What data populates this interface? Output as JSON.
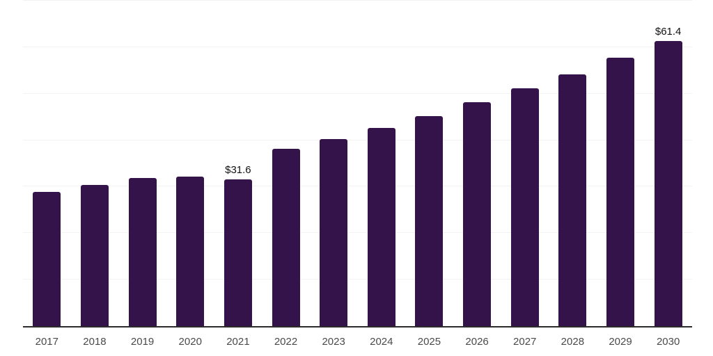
{
  "chart_data": {
    "type": "bar",
    "title": "",
    "xlabel": "",
    "ylabel": "",
    "categories": [
      "2017",
      "2018",
      "2019",
      "2020",
      "2021",
      "2022",
      "2023",
      "2024",
      "2025",
      "2026",
      "2027",
      "2028",
      "2029",
      "2030"
    ],
    "values": [
      28.9,
      30.4,
      31.9,
      32.2,
      31.6,
      38.1,
      40.2,
      42.7,
      45.2,
      48.1,
      51.1,
      54.1,
      57.7,
      61.4
    ],
    "data_labels": [
      "",
      "",
      "",
      "",
      "$31.6",
      "",
      "",
      "",
      "",
      "",
      "",
      "",
      "",
      "$61.4"
    ],
    "currency_prefix": "$",
    "ylim": [
      0,
      70
    ],
    "grid_interval": 10,
    "grid_visible": true,
    "legend_position": "none",
    "bar_color": "#331349",
    "grid_color": "#f2f2f2",
    "axis_color": "#2b2b2b",
    "tick_label_color": "#4a4a4a",
    "value_label_color": "#111111",
    "background_color": "#ffffff"
  }
}
